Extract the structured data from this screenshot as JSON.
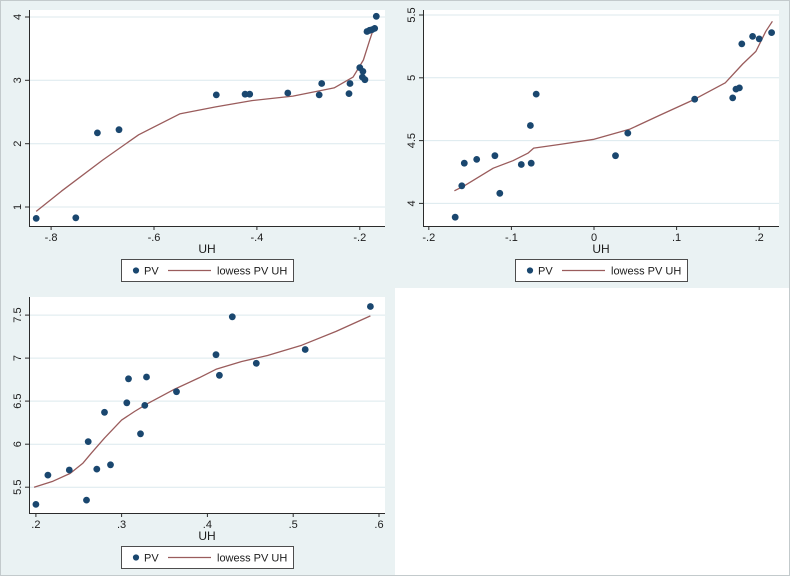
{
  "colors": {
    "panel_bg": "#eaf2f3",
    "plot_bg": "#ffffff",
    "grid": "#dce9ee",
    "axis": "#2b2b2b",
    "scatter": "#1a476f",
    "lowess": "#9a5c5c",
    "legend_bg": "#ffffff",
    "legend_border": "#4d4d4d",
    "text": "#1c1c1c"
  },
  "chart_data": [
    {
      "id": "panel-top-left",
      "type": "scatter",
      "title": "",
      "xlabel": "UH",
      "ylabel": "",
      "grid": "horizontal",
      "legend_position": "bottom-center",
      "legend": [
        "PV",
        "lowess PV UH"
      ],
      "xlim": [
        -0.843,
        -0.151
      ],
      "ylim": [
        0.7,
        4.11
      ],
      "xticks": [
        {
          "v": -0.8,
          "label": "-.8"
        },
        {
          "v": -0.6,
          "label": "-.6"
        },
        {
          "v": -0.4,
          "label": "-.4"
        },
        {
          "v": -0.2,
          "label": "-.2"
        }
      ],
      "yticks": [
        {
          "v": 1,
          "label": "1"
        },
        {
          "v": 2,
          "label": "2"
        },
        {
          "v": 3,
          "label": "3"
        },
        {
          "v": 4,
          "label": "4"
        }
      ],
      "scatter": [
        [
          -0.829,
          0.82
        ],
        [
          -0.752,
          0.83
        ],
        [
          -0.71,
          2.17
        ],
        [
          -0.668,
          2.22
        ],
        [
          -0.479,
          2.77
        ],
        [
          -0.423,
          2.78
        ],
        [
          -0.414,
          2.78
        ],
        [
          -0.34,
          2.8
        ],
        [
          -0.279,
          2.77
        ],
        [
          -0.274,
          2.95
        ],
        [
          -0.221,
          2.79
        ],
        [
          -0.219,
          2.95
        ],
        [
          -0.2,
          3.2
        ],
        [
          -0.194,
          3.14
        ],
        [
          -0.195,
          3.05
        ],
        [
          -0.19,
          3.01
        ],
        [
          -0.186,
          3.77
        ],
        [
          -0.181,
          3.79
        ],
        [
          -0.176,
          3.8
        ],
        [
          -0.171,
          3.82
        ],
        [
          -0.168,
          4.01
        ]
      ],
      "lowess": [
        [
          -0.829,
          0.93
        ],
        [
          -0.78,
          1.25
        ],
        [
          -0.7,
          1.74
        ],
        [
          -0.63,
          2.14
        ],
        [
          -0.55,
          2.47
        ],
        [
          -0.48,
          2.58
        ],
        [
          -0.41,
          2.68
        ],
        [
          -0.33,
          2.75
        ],
        [
          -0.25,
          2.88
        ],
        [
          -0.213,
          3.05
        ],
        [
          -0.193,
          3.32
        ],
        [
          -0.181,
          3.63
        ],
        [
          -0.171,
          3.87
        ]
      ]
    },
    {
      "id": "panel-top-right",
      "type": "scatter",
      "title": "",
      "xlabel": "UH",
      "ylabel": "",
      "grid": "horizontal",
      "legend_position": "bottom-center",
      "legend": [
        "PV",
        "lowess PV UH"
      ],
      "xlim": [
        -0.207,
        0.224
      ],
      "ylim": [
        3.82,
        5.54
      ],
      "xticks": [
        {
          "v": -0.2,
          "label": "-.2"
        },
        {
          "v": -0.1,
          "label": "-.1"
        },
        {
          "v": 0,
          "label": "0"
        },
        {
          "v": 0.1,
          "label": ".1"
        },
        {
          "v": 0.2,
          "label": ".2"
        }
      ],
      "yticks": [
        {
          "v": 4,
          "label": "4"
        },
        {
          "v": 4.5,
          "label": "4.5"
        },
        {
          "v": 5,
          "label": "5"
        },
        {
          "v": 5.5,
          "label": "5.5"
        }
      ],
      "scatter": [
        [
          -0.168,
          3.89
        ],
        [
          -0.16,
          4.14
        ],
        [
          -0.157,
          4.32
        ],
        [
          -0.142,
          4.35
        ],
        [
          -0.12,
          4.38
        ],
        [
          -0.114,
          4.08
        ],
        [
          -0.088,
          4.31
        ],
        [
          -0.077,
          4.62
        ],
        [
          -0.076,
          4.32
        ],
        [
          -0.07,
          4.87
        ],
        [
          0.026,
          4.38
        ],
        [
          0.041,
          4.56
        ],
        [
          0.122,
          4.83
        ],
        [
          0.168,
          4.84
        ],
        [
          0.172,
          4.91
        ],
        [
          0.176,
          4.92
        ],
        [
          0.179,
          5.27
        ],
        [
          0.192,
          5.33
        ],
        [
          0.2,
          5.31
        ],
        [
          0.215,
          5.36
        ]
      ],
      "lowess": [
        [
          -0.169,
          4.1
        ],
        [
          -0.157,
          4.14
        ],
        [
          -0.122,
          4.28
        ],
        [
          -0.098,
          4.34
        ],
        [
          -0.08,
          4.4
        ],
        [
          -0.073,
          4.44
        ],
        [
          -0.041,
          4.47
        ],
        [
          0.0,
          4.51
        ],
        [
          0.043,
          4.59
        ],
        [
          0.079,
          4.7
        ],
        [
          0.119,
          4.82
        ],
        [
          0.159,
          4.96
        ],
        [
          0.18,
          5.11
        ],
        [
          0.196,
          5.21
        ],
        [
          0.208,
          5.37
        ],
        [
          0.216,
          5.45
        ]
      ]
    },
    {
      "id": "panel-bottom-left",
      "type": "scatter",
      "title": "",
      "xlabel": "UH",
      "ylabel": "",
      "grid": "horizontal",
      "legend_position": "bottom-center",
      "legend": [
        "PV",
        "lowess PV UH"
      ],
      "xlim": [
        0.192,
        0.607
      ],
      "ylim": [
        5.2,
        7.71
      ],
      "xticks": [
        {
          "v": 0.2,
          "label": ".2"
        },
        {
          "v": 0.3,
          "label": ".3"
        },
        {
          "v": 0.4,
          "label": ".4"
        },
        {
          "v": 0.5,
          "label": ".5"
        },
        {
          "v": 0.6,
          "label": ".6"
        }
      ],
      "yticks": [
        {
          "v": 5.5,
          "label": "5.5"
        },
        {
          "v": 6,
          "label": "6"
        },
        {
          "v": 6.5,
          "label": "6.5"
        },
        {
          "v": 7,
          "label": "7"
        },
        {
          "v": 7.5,
          "label": "7.5"
        }
      ],
      "scatter": [
        [
          0.2,
          5.3
        ],
        [
          0.214,
          5.64
        ],
        [
          0.239,
          5.7
        ],
        [
          0.259,
          5.35
        ],
        [
          0.261,
          6.03
        ],
        [
          0.271,
          5.71
        ],
        [
          0.28,
          6.37
        ],
        [
          0.287,
          5.76
        ],
        [
          0.306,
          6.48
        ],
        [
          0.308,
          6.76
        ],
        [
          0.322,
          6.12
        ],
        [
          0.327,
          6.45
        ],
        [
          0.329,
          6.78
        ],
        [
          0.364,
          6.61
        ],
        [
          0.41,
          7.04
        ],
        [
          0.414,
          6.8
        ],
        [
          0.429,
          7.48
        ],
        [
          0.457,
          6.94
        ],
        [
          0.514,
          7.1
        ],
        [
          0.59,
          7.6
        ]
      ],
      "lowess": [
        [
          0.198,
          5.5
        ],
        [
          0.22,
          5.57
        ],
        [
          0.24,
          5.66
        ],
        [
          0.255,
          5.78
        ],
        [
          0.265,
          5.9
        ],
        [
          0.28,
          6.07
        ],
        [
          0.3,
          6.28
        ],
        [
          0.315,
          6.38
        ],
        [
          0.33,
          6.47
        ],
        [
          0.36,
          6.63
        ],
        [
          0.39,
          6.77
        ],
        [
          0.41,
          6.87
        ],
        [
          0.44,
          6.96
        ],
        [
          0.47,
          7.03
        ],
        [
          0.51,
          7.15
        ],
        [
          0.55,
          7.31
        ],
        [
          0.59,
          7.49
        ]
      ]
    }
  ]
}
